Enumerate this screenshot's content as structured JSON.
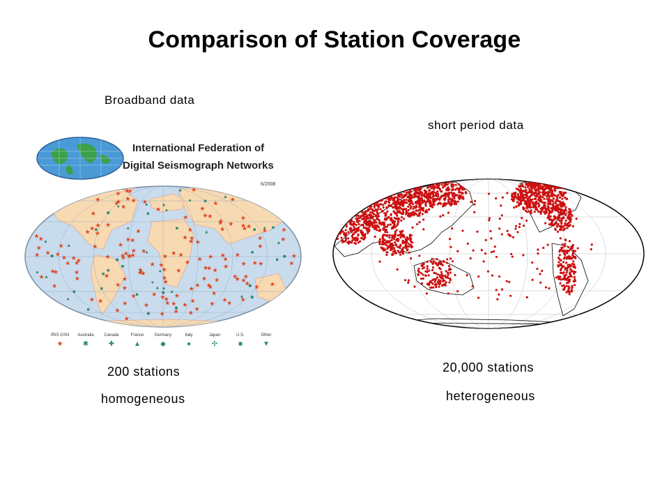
{
  "slide": {
    "title": "Comparison of Station Coverage"
  },
  "left_panel": {
    "caption": "Broadband data",
    "logo_line1": "International Federation of",
    "logo_line2": "Digital Seismograph Networks",
    "date": "6/2008",
    "stations": "200 stations",
    "quality": "homogeneous",
    "legend": [
      {
        "label": "IRIS GSN",
        "symbol": "★",
        "color": "#e0451f"
      },
      {
        "label": "Australia",
        "symbol": "✱",
        "color": "#2a8a6e"
      },
      {
        "label": "Canada",
        "symbol": "✚",
        "color": "#2a8a6e"
      },
      {
        "label": "France",
        "symbol": "▲",
        "color": "#2a8a6e"
      },
      {
        "label": "Germany",
        "symbol": "◆",
        "color": "#2a8a6e"
      },
      {
        "label": "Italy",
        "symbol": "●",
        "color": "#2a8a6e"
      },
      {
        "label": "Japan",
        "symbol": "✣",
        "color": "#2a8a6e"
      },
      {
        "label": "U.S.",
        "symbol": "■",
        "color": "#2a8a6e"
      },
      {
        "label": "Other",
        "symbol": "▼",
        "color": "#2a8a6e"
      }
    ],
    "colors": {
      "ocean": "#c9dcee",
      "land": "#f7d9b2",
      "gsn": "#e0451f",
      "other": "#2a8a6e"
    }
  },
  "right_panel": {
    "caption": "short period data",
    "stations": "20,000 stations",
    "quality": "heterogeneous",
    "colors": {
      "ocean": "#ffffff",
      "stations": "#cc1010",
      "outline": "#000000"
    }
  }
}
